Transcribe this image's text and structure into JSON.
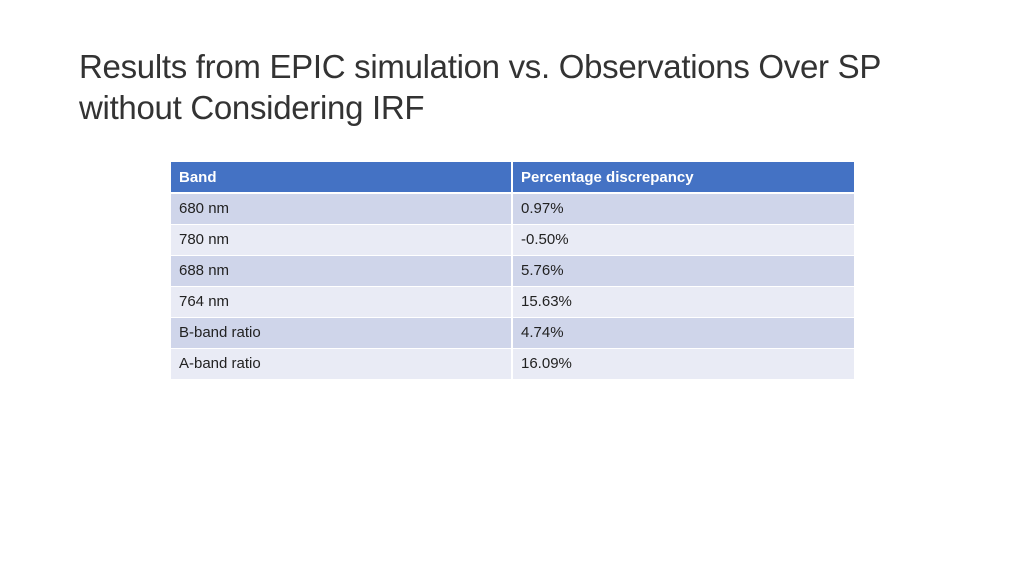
{
  "slide": {
    "title": "Results from EPIC simulation vs. Observations Over SP without Considering IRF"
  },
  "table": {
    "headers": [
      "Band",
      "Percentage discrepancy"
    ],
    "rows": [
      [
        "680 nm",
        "0.97%"
      ],
      [
        "780 nm",
        "-0.50%"
      ],
      [
        "688 nm",
        "5.76%"
      ],
      [
        "764 nm",
        "15.63%"
      ],
      [
        "B-band ratio",
        "4.74%"
      ],
      [
        "A-band ratio",
        "16.09%"
      ]
    ],
    "header_color": "#4472c4",
    "row_color_odd": "#cfd5ea",
    "row_color_even": "#e9ebf5"
  }
}
